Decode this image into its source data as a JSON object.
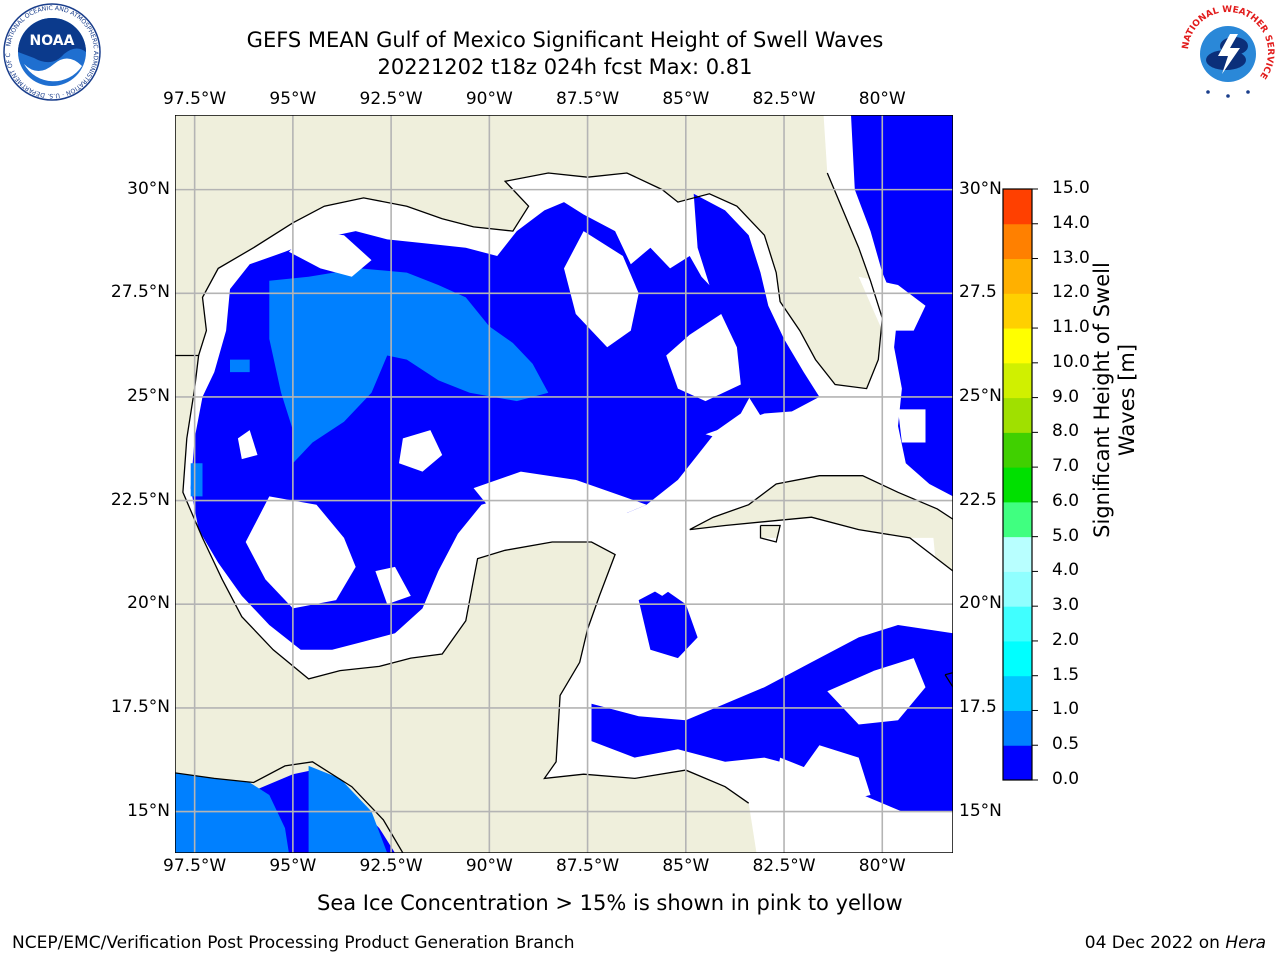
{
  "title": {
    "line1": "GEFS MEAN Gulf of Mexico Significant Height of Swell Waves",
    "line2": "20221202 t18z 024h fcst   Max: 0.81"
  },
  "logos": {
    "left": {
      "icon": "noaa-logo",
      "text": "NOAA",
      "ring_text": "NATIONAL OCEANIC AND ATMOSPHERIC ADMINISTRATION · U.S. DEPARTMENT OF COMMERCE"
    },
    "right": {
      "icon": "national-weather-service-logo",
      "ring_text": "NATIONAL WEATHER SERVICE"
    }
  },
  "map": {
    "lon_range": [
      -98.0,
      -78.2
    ],
    "lat_range": [
      14.0,
      31.8
    ],
    "lon_ticks": [
      {
        "value": -97.5,
        "label": "97.5°W"
      },
      {
        "value": -95.0,
        "label": "95°W"
      },
      {
        "value": -92.5,
        "label": "92.5°W"
      },
      {
        "value": -90.0,
        "label": "90°W"
      },
      {
        "value": -87.5,
        "label": "87.5°W"
      },
      {
        "value": -85.0,
        "label": "85°W"
      },
      {
        "value": -82.5,
        "label": "82.5°W"
      },
      {
        "value": -80.0,
        "label": "80°W"
      }
    ],
    "lat_ticks": [
      {
        "value": 30.0,
        "label": "30°N"
      },
      {
        "value": 27.5,
        "label": "27.5°N"
      },
      {
        "value": 25.0,
        "label": "25°N"
      },
      {
        "value": 22.5,
        "label": "22.5°N"
      },
      {
        "value": 20.0,
        "label": "20°N"
      },
      {
        "value": 17.5,
        "label": "17.5°N"
      },
      {
        "value": 15.0,
        "label": "15°N"
      }
    ],
    "right_lat_labels": [
      "30°N",
      "27.5",
      "25°N",
      "22.5",
      "20°N",
      "17.5",
      "15°N"
    ],
    "grid": true,
    "colors": {
      "ocean_na": "#ffffff",
      "land": "#efefdc",
      "grid": "#b4b4b4",
      "coast": "#000000"
    }
  },
  "colorbar": {
    "label_line1": "Significant Height of Swell",
    "label_line2": "Waves [m]",
    "ticks": [
      "0.0",
      "0.5",
      "1.0",
      "1.5",
      "2.0",
      "3.0",
      "4.0",
      "5.0",
      "6.0",
      "7.0",
      "8.0",
      "9.0",
      "10.0",
      "11.0",
      "12.0",
      "13.0",
      "14.0",
      "15.0"
    ],
    "colors": [
      "#0000ff",
      "#0080ff",
      "#00c8ff",
      "#00ffff",
      "#40ffff",
      "#90ffff",
      "#b8ffff",
      "#40ff80",
      "#00e000",
      "#40d000",
      "#a0e000",
      "#d0f000",
      "#ffff00",
      "#ffd000",
      "#ffb000",
      "#ff8000",
      "#ff4000",
      "#ff0000"
    ]
  },
  "chart_data": {
    "type": "heatmap",
    "field": "Significant Height of Swell Waves",
    "units": "m",
    "max": 0.81,
    "levels": [
      0.0,
      0.5,
      1.0,
      1.5,
      2.0,
      3.0,
      4.0,
      5.0,
      6.0,
      7.0,
      8.0,
      9.0,
      10.0,
      11.0,
      12.0,
      13.0,
      14.0,
      15.0
    ],
    "regions": [
      {
        "range_m": "0.0-0.5",
        "color": "#0000ff",
        "area": "most of the Gulf of Mexico, eastern Caribbean, Atlantic east of Florida"
      },
      {
        "range_m": "0.5-1.0",
        "color": "#0080ff",
        "area": "central/western Gulf of Mexico and eastern Pacific south of Mexico"
      },
      {
        "range_m": "below 0.0 / missing",
        "color": "#ffffff",
        "area": "scattered patches"
      }
    ]
  },
  "note": "Sea Ice Concentration > 15% is shown in pink to yellow",
  "footer": {
    "left": "NCEP/EMC/Verification Post Processing Product Generation Branch",
    "right_prefix": "04 Dec 2022 on ",
    "right_host": "Hera"
  }
}
